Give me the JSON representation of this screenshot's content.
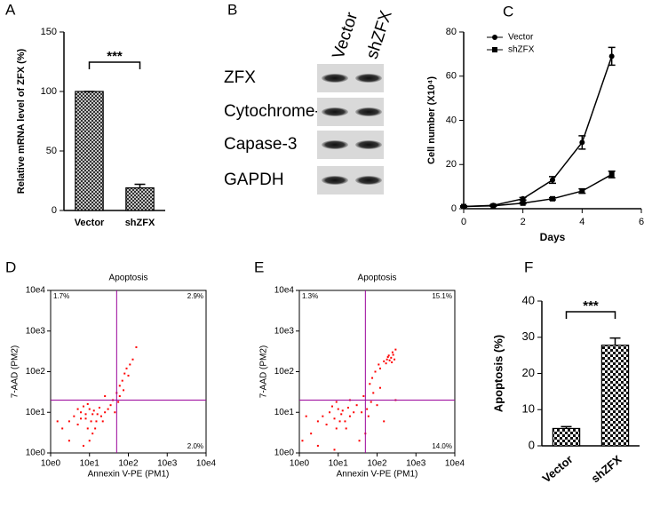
{
  "chart_data": [
    {
      "type": "bar",
      "panel": "A",
      "ylabel": "Relative mRNA level of ZFX (%)",
      "categories": [
        "Vector",
        "shZFX"
      ],
      "values": [
        100,
        19
      ],
      "errors": [
        0,
        3
      ],
      "ylim": [
        0,
        150
      ],
      "yticks": [
        0,
        50,
        100,
        150
      ],
      "annotation": "***",
      "color": "#000000"
    },
    {
      "type": "blot",
      "panel": "B",
      "lanes": [
        "Vector",
        "shZFX"
      ],
      "rows": [
        "ZFX",
        "Cytochrome-c",
        "Capase-3",
        "GAPDH"
      ]
    },
    {
      "type": "line",
      "panel": "C",
      "xlabel": "Days",
      "ylabel": "Cell number (X10⁴)",
      "x": [
        0,
        1,
        2,
        3,
        4,
        5
      ],
      "xlim": [
        0,
        6
      ],
      "xticks": [
        0,
        2,
        4,
        6
      ],
      "ylim": [
        0,
        80
      ],
      "yticks": [
        0,
        20,
        40,
        60,
        80
      ],
      "legend": "upper left",
      "series": [
        {
          "name": "Vector",
          "color": "#000000",
          "marker": "circle",
          "values": [
            1,
            1.5,
            4.5,
            13,
            30,
            69
          ],
          "errors": [
            0.3,
            0.3,
            0.6,
            1.5,
            3,
            4
          ]
        },
        {
          "name": "shZFX",
          "color": "#000000",
          "marker": "square",
          "values": [
            1,
            1.3,
            2.5,
            4.5,
            8,
            15.5
          ],
          "errors": [
            0.2,
            0.2,
            0.3,
            0.5,
            1,
            1.5
          ]
        }
      ]
    },
    {
      "type": "scatter",
      "panel": "D",
      "title": "Apoptosis",
      "xlabel": "Annexin V-PE (PM1)",
      "ylabel": "7-AAD (PM2)",
      "log_scale": true,
      "color": "#ff0000",
      "gate_color": "#990099",
      "gate": {
        "x": 50,
        "y": 20
      },
      "xlim": [
        1,
        10000
      ],
      "ylim": [
        1,
        10000
      ],
      "xticks": [
        {
          "value": 1,
          "label": "10e0"
        },
        {
          "value": 10,
          "label": "10e1"
        },
        {
          "value": 100,
          "label": "10e2"
        },
        {
          "value": 1000,
          "label": "10e3"
        },
        {
          "value": 10000,
          "label": "10e4"
        }
      ],
      "yticks": [
        {
          "value": 1,
          "label": "10e0"
        },
        {
          "value": 10,
          "label": "10e1"
        },
        {
          "value": 100,
          "label": "10e2"
        },
        {
          "value": 1000,
          "label": "10e3"
        },
        {
          "value": 10000,
          "label": "10e4"
        }
      ],
      "quadrant_labels": {
        "upper_left": "1.7%",
        "upper_right": "2.9%",
        "lower_right": "2.0%"
      },
      "x": [
        8,
        12,
        6,
        15,
        10,
        5,
        20,
        9,
        7,
        13,
        4,
        25,
        11,
        3,
        18,
        8,
        14,
        6,
        30,
        9,
        2,
        12,
        22,
        5,
        16,
        10,
        40,
        35,
        50,
        60,
        70,
        80,
        90,
        110,
        130,
        160,
        60,
        45,
        55,
        3,
        1.5,
        7,
        100,
        75,
        25
      ],
      "values": [
        7,
        9,
        10,
        6,
        12,
        5,
        8,
        4,
        14,
        11,
        8,
        10,
        6,
        6,
        13,
        9,
        4,
        7,
        12,
        16,
        4,
        3,
        6,
        12,
        9,
        2,
        20,
        15,
        30,
        45,
        60,
        90,
        120,
        150,
        200,
        400,
        25,
        10,
        18,
        2,
        6,
        1.5,
        80,
        35,
        25
      ]
    },
    {
      "type": "scatter",
      "panel": "E",
      "title": "Apoptosis",
      "xlabel": "Annexin V-PE (PM1)",
      "ylabel": "7-AAD (PM2)",
      "log_scale": true,
      "color": "#ff0000",
      "gate_color": "#990099",
      "gate": {
        "x": 50,
        "y": 20
      },
      "xlim": [
        1,
        10000
      ],
      "ylim": [
        1,
        10000
      ],
      "xticks": [
        {
          "value": 1,
          "label": "10e0"
        },
        {
          "value": 10,
          "label": "10e1"
        },
        {
          "value": 100,
          "label": "10e2"
        },
        {
          "value": 1000,
          "label": "10e3"
        },
        {
          "value": 10000,
          "label": "10e4"
        }
      ],
      "yticks": [
        {
          "value": 1,
          "label": "10e0"
        },
        {
          "value": 10,
          "label": "10e1"
        },
        {
          "value": 100,
          "label": "10e2"
        },
        {
          "value": 1000,
          "label": "10e3"
        },
        {
          "value": 10000,
          "label": "10e4"
        }
      ],
      "quadrant_labels": {
        "upper_left": "1.3%",
        "upper_right": "15.1%",
        "lower_right": "14.0%"
      },
      "x": [
        8,
        12,
        6,
        15,
        10,
        5,
        20,
        9,
        7,
        13,
        4,
        25,
        11,
        3,
        18,
        2,
        1.5,
        8,
        3,
        30,
        40,
        55,
        70,
        60,
        45,
        80,
        65,
        75,
        90,
        110,
        150,
        180,
        200,
        230,
        250,
        170,
        210,
        260,
        190,
        300,
        280,
        120,
        240,
        100,
        150,
        300,
        120,
        50,
        35,
        20,
        16,
        9,
        1.2
      ],
      "values": [
        7,
        9,
        10,
        6,
        12,
        5,
        8,
        4,
        14,
        11,
        8,
        10,
        6,
        6,
        13,
        3,
        8,
        1.2,
        1.5,
        15,
        10,
        12,
        18,
        8,
        25,
        30,
        50,
        70,
        100,
        150,
        180,
        200,
        250,
        220,
        300,
        160,
        190,
        260,
        230,
        350,
        200,
        120,
        170,
        15,
        6,
        20,
        40,
        3,
        2,
        20,
        4,
        18,
        2
      ]
    },
    {
      "type": "bar",
      "panel": "F",
      "ylabel": "Apoptosis (%)",
      "categories": [
        "Vector",
        "shZFX"
      ],
      "values": [
        4.8,
        27.8
      ],
      "errors": [
        0.5,
        2
      ],
      "ylim": [
        0,
        40
      ],
      "yticks": [
        0,
        10,
        20,
        30,
        40
      ],
      "annotation": "***",
      "color": "#000000"
    }
  ]
}
